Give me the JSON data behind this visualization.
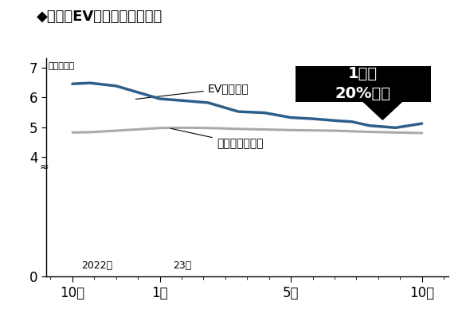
{
  "title": "◆米国のEVの平均価格の推移",
  "y_unit_label": "（万ドル）",
  "background_color": "#ffffff",
  "ev_label": "EV平均価格",
  "overall_label": "全体の平均価格",
  "annotation_text": "1年で\n20%下落",
  "year_label_2022": "2022年",
  "year_label_23": "23年",
  "x_labels": [
    "10月",
    "1月",
    "5月",
    "10月"
  ],
  "ev_color": "#2e5f8a",
  "overall_color": "#aaaaaa",
  "ev_x": [
    0,
    0.2,
    0.5,
    1.0,
    1.3,
    1.55,
    1.9,
    2.2,
    2.5,
    2.75,
    3.0,
    3.2,
    3.4,
    3.7,
    4.0
  ],
  "ev_y": [
    6.45,
    6.48,
    6.38,
    5.95,
    5.88,
    5.82,
    5.52,
    5.48,
    5.32,
    5.28,
    5.22,
    5.18,
    5.05,
    4.98,
    5.12
  ],
  "overall_x": [
    0,
    0.2,
    0.5,
    1.0,
    1.3,
    1.55,
    1.9,
    2.2,
    2.5,
    2.75,
    3.0,
    3.2,
    3.4,
    3.7,
    4.0
  ],
  "overall_y": [
    4.82,
    4.83,
    4.88,
    4.97,
    4.98,
    4.97,
    4.94,
    4.92,
    4.9,
    4.89,
    4.88,
    4.86,
    4.84,
    4.82,
    4.8
  ],
  "x_tick_positions": [
    0,
    1.0,
    2.5,
    4.0
  ],
  "ylim": [
    0,
    7.3
  ],
  "xlim": [
    -0.3,
    4.3
  ]
}
